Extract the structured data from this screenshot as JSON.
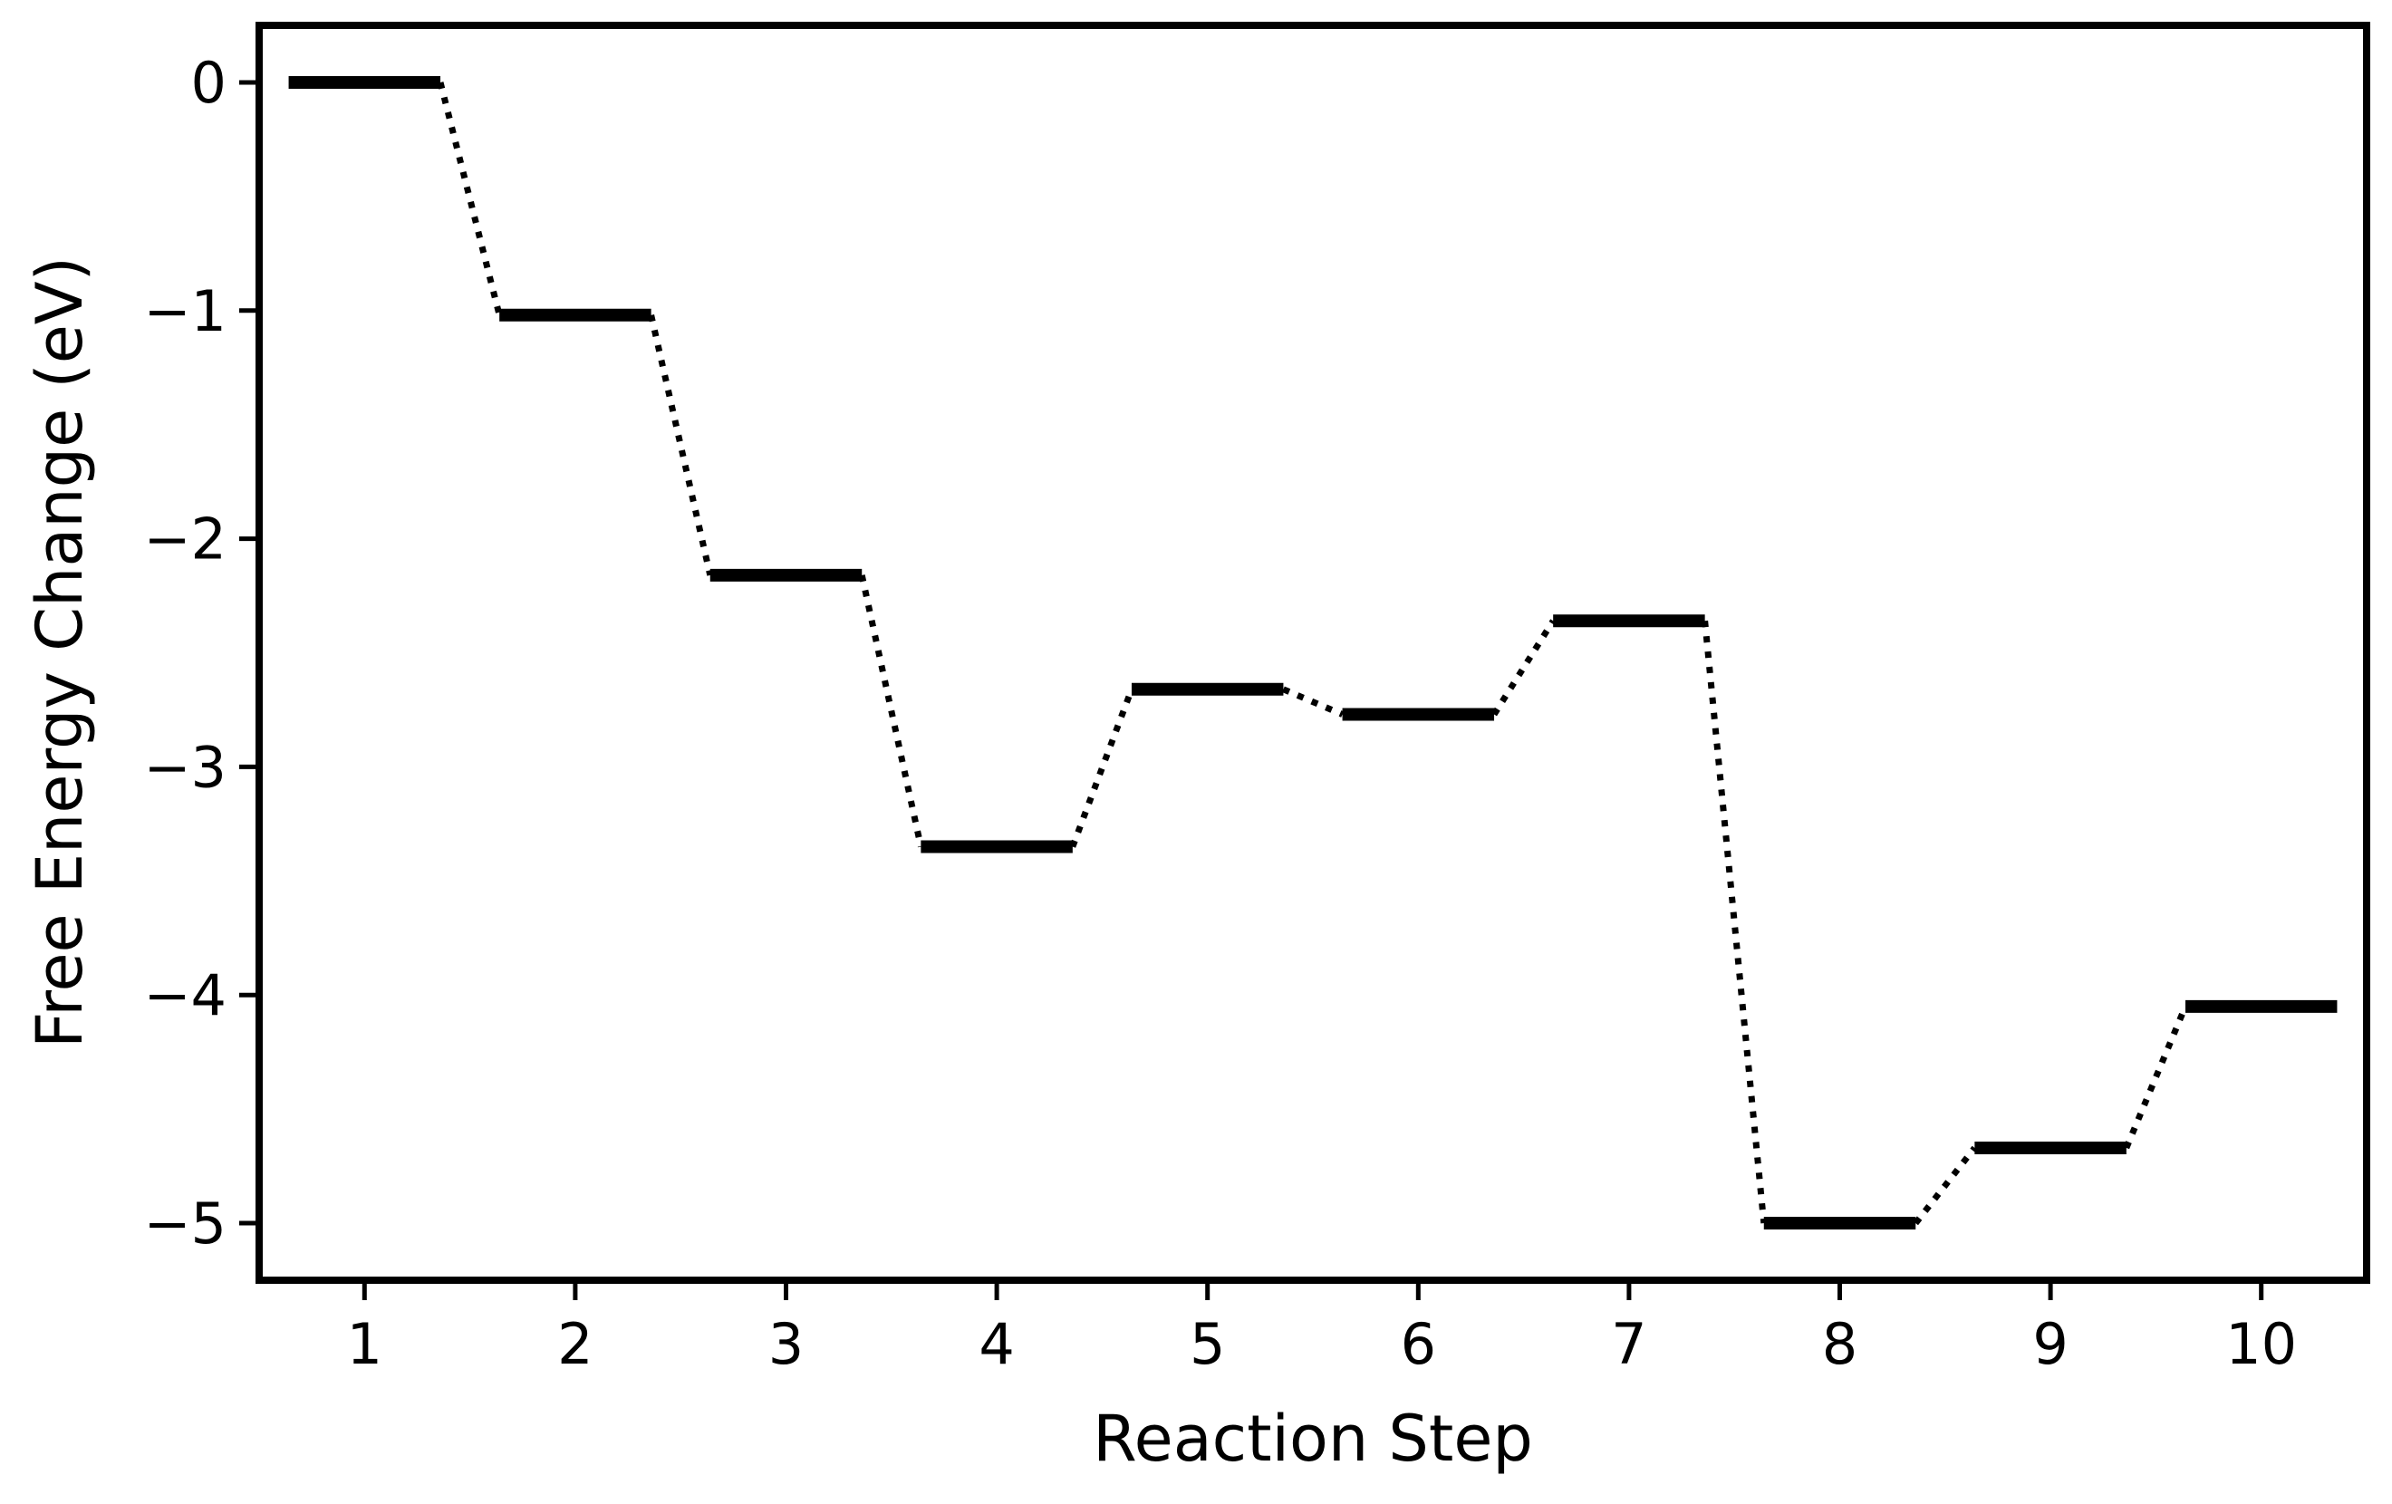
{
  "chart_data": {
    "type": "line",
    "style": "free-energy step diagram: horizontal level per step, dotted connectors between adjacent levels",
    "title": "",
    "xlabel": "Reaction Step",
    "ylabel": "Free Energy Change (eV)",
    "x": [
      1,
      2,
      3,
      4,
      5,
      6,
      7,
      8,
      9,
      10
    ],
    "values": [
      0.0,
      -1.02,
      -2.16,
      -3.35,
      -2.66,
      -2.77,
      -2.36,
      -5.0,
      -4.67,
      -4.05
    ],
    "xticks": [
      "1",
      "2",
      "3",
      "4",
      "5",
      "6",
      "7",
      "8",
      "9",
      "10"
    ],
    "yticks": [
      0,
      -1,
      -2,
      -3,
      -4,
      -5
    ],
    "ytick_labels": [
      "0",
      "−1",
      "−2",
      "−3",
      "−4",
      "−5"
    ],
    "xlim": [
      0.5,
      10.5
    ],
    "ylim": [
      -5.25,
      0.25
    ],
    "grid": false,
    "legend": "none",
    "level_color": "#000000",
    "connector_color": "#000000"
  }
}
